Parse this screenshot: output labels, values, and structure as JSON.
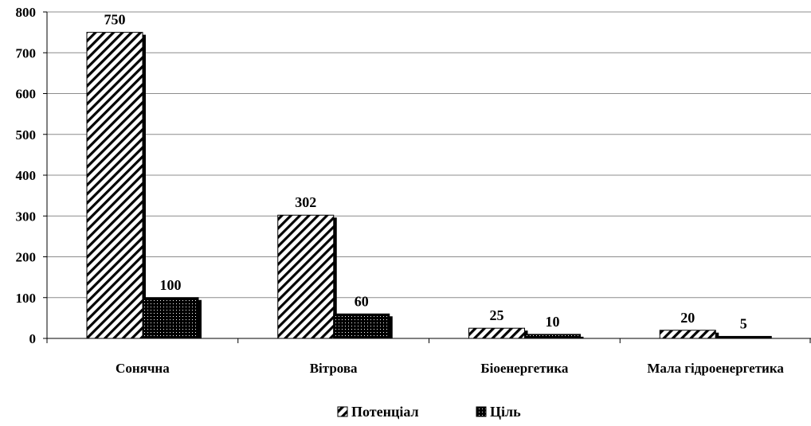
{
  "chart_data": {
    "type": "bar",
    "categories": [
      "Сонячна",
      "Вітрова",
      "Біоенергетика",
      "Мала гідроенергетика"
    ],
    "series": [
      {
        "name": "Потенціал",
        "values": [
          750,
          302,
          25,
          20
        ],
        "pattern": "diagonal-hatch",
        "color": "#000000"
      },
      {
        "name": "Ціль",
        "values": [
          100,
          60,
          10,
          5
        ],
        "pattern": "dense-dots",
        "color": "#000000"
      }
    ],
    "data_labels": [
      [
        "750",
        "302",
        "25",
        "20"
      ],
      [
        "100",
        "60",
        "10",
        "5"
      ]
    ],
    "yticks": [
      "0",
      "100",
      "200",
      "300",
      "400",
      "500",
      "600",
      "700",
      "800"
    ],
    "ylim": [
      0,
      800
    ],
    "grid": true,
    "legend_position": "bottom"
  }
}
